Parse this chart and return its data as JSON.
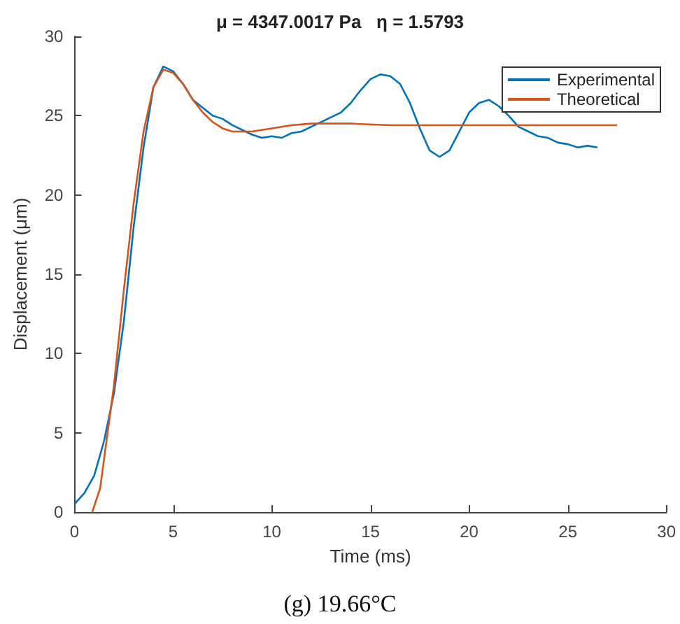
{
  "chart_data": {
    "type": "line",
    "title": "μ = 4347.0017 Pa   η = 1.5793",
    "xlabel": "Time (ms)",
    "ylabel": "Displacement (μm)",
    "annotations": [
      "(g) 19.66°C"
    ],
    "xlim": [
      0,
      30
    ],
    "xticks": [
      0,
      5,
      10,
      15,
      20,
      25,
      30
    ],
    "ylim": [
      0,
      30
    ],
    "yticks": [
      0,
      5,
      10,
      15,
      20,
      25,
      30
    ],
    "grid": false,
    "legend": "top right",
    "marker": "none",
    "line_style": "solid",
    "series": [
      {
        "name": "Experimental",
        "color": "#0072bd",
        "x": [
          0,
          0.5,
          1,
          1.5,
          2,
          2.5,
          3,
          3.5,
          4,
          4.5,
          5,
          5.5,
          6,
          6.5,
          7,
          7.5,
          8,
          8.5,
          9,
          9.5,
          10,
          10.5,
          11,
          11.5,
          12,
          12.5,
          13,
          13.5,
          14,
          14.5,
          15,
          15.5,
          16,
          16.5,
          17,
          17.5,
          18,
          18.5,
          19,
          19.5,
          20,
          20.5,
          21,
          21.5,
          22,
          22.5,
          23,
          23.5,
          24,
          24.5,
          25,
          25.5,
          26,
          26.5
        ],
        "values": [
          0.5,
          1.2,
          2.3,
          4.5,
          7.5,
          12,
          18,
          23,
          26.8,
          28.1,
          27.8,
          27,
          26,
          25.5,
          25,
          24.8,
          24.4,
          24.1,
          23.8,
          23.6,
          23.7,
          23.6,
          23.9,
          24,
          24.3,
          24.6,
          24.9,
          25.2,
          25.8,
          26.6,
          27.3,
          27.6,
          27.5,
          27,
          25.8,
          24.2,
          22.8,
          22.4,
          22.8,
          24,
          25.2,
          25.8,
          26,
          25.6,
          25,
          24.3,
          24,
          23.7,
          23.6,
          23.3,
          23.2,
          23,
          23.1,
          23
        ]
      },
      {
        "name": "Theoretical",
        "color": "#d95319",
        "x": [
          0.9,
          1.3,
          2,
          2.5,
          3,
          3.5,
          4,
          4.5,
          5,
          5.5,
          6,
          6.5,
          7,
          7.5,
          8,
          9,
          10,
          11,
          12,
          14,
          16,
          20,
          27.5
        ],
        "values": [
          0,
          1.5,
          8,
          14,
          19.5,
          24,
          26.8,
          27.9,
          27.7,
          27,
          26,
          25.2,
          24.6,
          24.2,
          24,
          24,
          24.2,
          24.4,
          24.5,
          24.5,
          24.4,
          24.4,
          24.4
        ]
      }
    ]
  }
}
